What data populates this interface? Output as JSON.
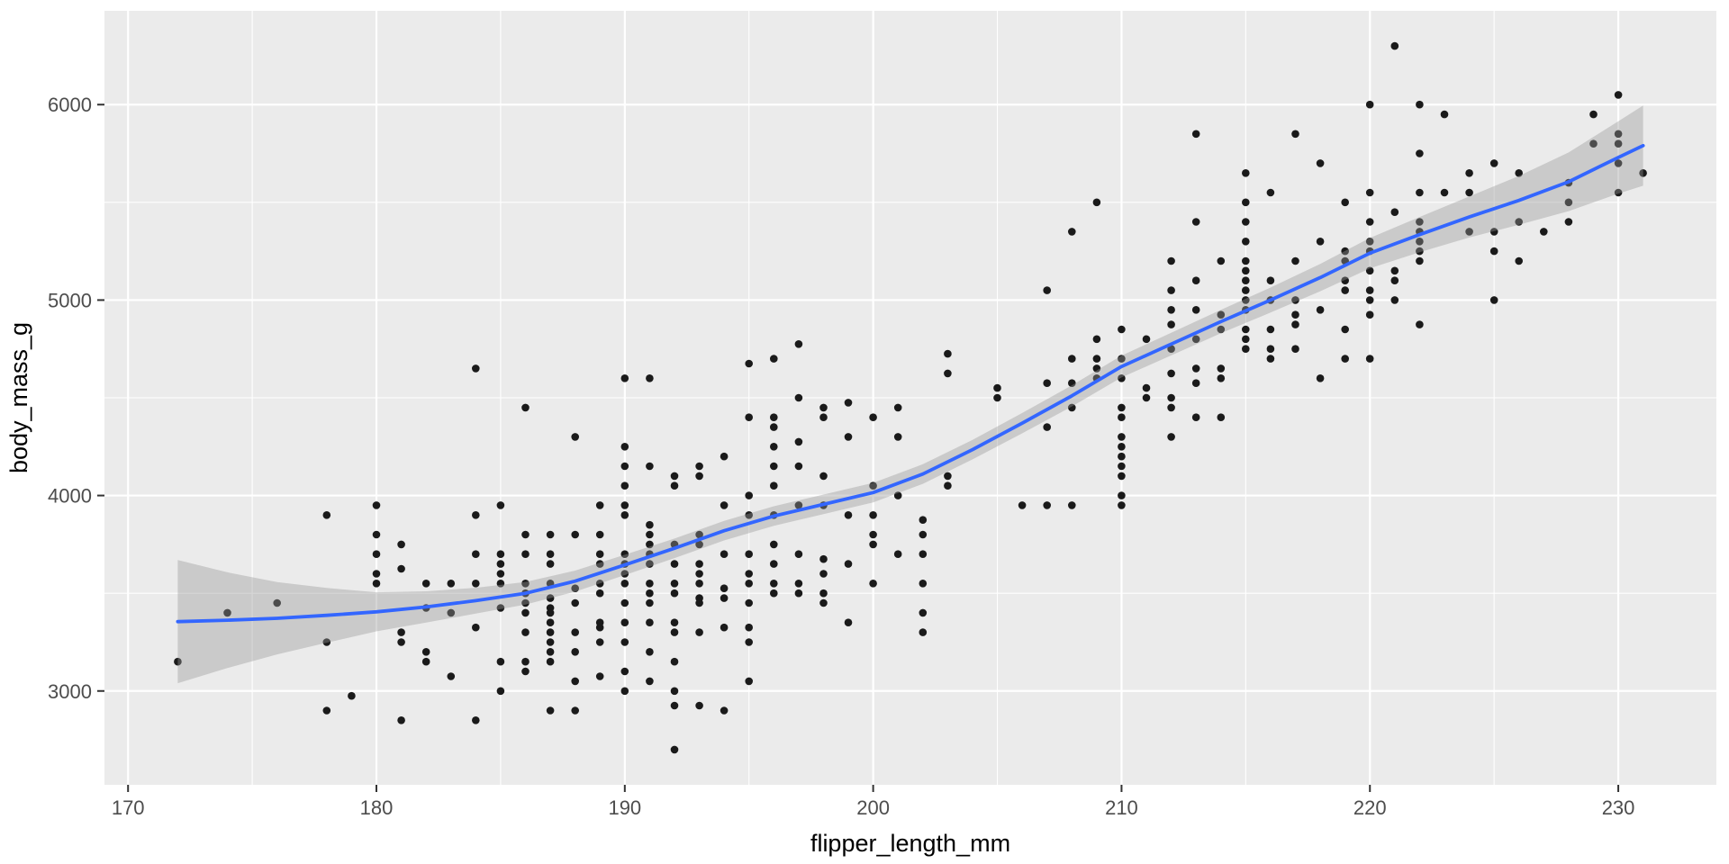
{
  "style": {
    "background": "#FFFFFF",
    "panel_fill": "#EBEBEB",
    "grid_color": "#FFFFFF",
    "point_color": "#1A1A1A",
    "smooth_color": "#3366FF",
    "ribbon_color": "rgba(153,153,153,0.40)",
    "tick_label_color": "#4D4D4D",
    "axis_title_color": "#000000",
    "tick_mark_color": "#333333"
  },
  "chart_data": {
    "type": "scatter",
    "title": "",
    "xlabel": "flipper_length_mm",
    "ylabel": "body_mass_g",
    "xlim": [
      169.05,
      233.95
    ],
    "ylim": [
      2520,
      6480
    ],
    "x_ticks": [
      170,
      180,
      190,
      200,
      210,
      220,
      230
    ],
    "y_ticks": [
      3000,
      4000,
      5000,
      6000
    ],
    "x_minor": [
      175,
      185,
      195,
      205,
      215,
      225
    ],
    "y_minor": [
      3500,
      4500,
      5500
    ],
    "grid": "on",
    "legend": "none",
    "points": [
      [
        172,
        3150
      ],
      [
        174,
        3400
      ],
      [
        176,
        3450
      ],
      [
        178,
        2900
      ],
      [
        178,
        3250
      ],
      [
        178,
        3900
      ],
      [
        179,
        2975
      ],
      [
        180,
        3550
      ],
      [
        180,
        3600
      ],
      [
        180,
        3700
      ],
      [
        180,
        3800
      ],
      [
        180,
        3950
      ],
      [
        181,
        2850
      ],
      [
        181,
        3250
      ],
      [
        181,
        3300
      ],
      [
        181,
        3625
      ],
      [
        181,
        3750
      ],
      [
        182,
        3150
      ],
      [
        182,
        3200
      ],
      [
        182,
        3425
      ],
      [
        182,
        3550
      ],
      [
        183,
        3075
      ],
      [
        183,
        3400
      ],
      [
        183,
        3550
      ],
      [
        184,
        2850
      ],
      [
        184,
        3325
      ],
      [
        184,
        3550
      ],
      [
        184,
        3700
      ],
      [
        184,
        3900
      ],
      [
        184,
        4650
      ],
      [
        185,
        3000
      ],
      [
        185,
        3150
      ],
      [
        185,
        3425
      ],
      [
        185,
        3550
      ],
      [
        185,
        3600
      ],
      [
        185,
        3650
      ],
      [
        185,
        3700
      ],
      [
        185,
        3950
      ],
      [
        186,
        3100
      ],
      [
        186,
        3150
      ],
      [
        186,
        3300
      ],
      [
        186,
        3400
      ],
      [
        186,
        3450
      ],
      [
        186,
        3500
      ],
      [
        186,
        3550
      ],
      [
        186,
        3700
      ],
      [
        186,
        3800
      ],
      [
        186,
        4450
      ],
      [
        187,
        2900
      ],
      [
        187,
        3150
      ],
      [
        187,
        3200
      ],
      [
        187,
        3250
      ],
      [
        187,
        3300
      ],
      [
        187,
        3350
      ],
      [
        187,
        3400
      ],
      [
        187,
        3425
      ],
      [
        187,
        3475
      ],
      [
        187,
        3550
      ],
      [
        187,
        3650
      ],
      [
        187,
        3700
      ],
      [
        187,
        3800
      ],
      [
        188,
        2900
      ],
      [
        188,
        3050
      ],
      [
        188,
        3200
      ],
      [
        188,
        3300
      ],
      [
        188,
        3450
      ],
      [
        188,
        3525
      ],
      [
        188,
        3800
      ],
      [
        188,
        4300
      ],
      [
        189,
        3075
      ],
      [
        189,
        3250
      ],
      [
        189,
        3325
      ],
      [
        189,
        3350
      ],
      [
        189,
        3500
      ],
      [
        189,
        3550
      ],
      [
        189,
        3650
      ],
      [
        189,
        3700
      ],
      [
        189,
        3800
      ],
      [
        189,
        3950
      ],
      [
        190,
        3000
      ],
      [
        190,
        3100
      ],
      [
        190,
        3250
      ],
      [
        190,
        3350
      ],
      [
        190,
        3450
      ],
      [
        190,
        3550
      ],
      [
        190,
        3600
      ],
      [
        190,
        3650
      ],
      [
        190,
        3700
      ],
      [
        190,
        3900
      ],
      [
        190,
        3950
      ],
      [
        190,
        4050
      ],
      [
        190,
        4150
      ],
      [
        190,
        4250
      ],
      [
        190,
        4600
      ],
      [
        191,
        3050
      ],
      [
        191,
        3200
      ],
      [
        191,
        3350
      ],
      [
        191,
        3450
      ],
      [
        191,
        3500
      ],
      [
        191,
        3550
      ],
      [
        191,
        3650
      ],
      [
        191,
        3700
      ],
      [
        191,
        3750
      ],
      [
        191,
        3800
      ],
      [
        191,
        3850
      ],
      [
        191,
        4150
      ],
      [
        191,
        4600
      ],
      [
        192,
        2700
      ],
      [
        192,
        2925
      ],
      [
        192,
        3000
      ],
      [
        192,
        3150
      ],
      [
        192,
        3300
      ],
      [
        192,
        3350
      ],
      [
        192,
        3500
      ],
      [
        192,
        3550
      ],
      [
        192,
        3650
      ],
      [
        192,
        3750
      ],
      [
        192,
        4050
      ],
      [
        192,
        4100
      ],
      [
        193,
        2925
      ],
      [
        193,
        3300
      ],
      [
        193,
        3450
      ],
      [
        193,
        3475
      ],
      [
        193,
        3550
      ],
      [
        193,
        3600
      ],
      [
        193,
        3650
      ],
      [
        193,
        3750
      ],
      [
        193,
        3800
      ],
      [
        193,
        4100
      ],
      [
        193,
        4150
      ],
      [
        194,
        2900
      ],
      [
        194,
        3325
      ],
      [
        194,
        3475
      ],
      [
        194,
        3525
      ],
      [
        194,
        3700
      ],
      [
        194,
        3950
      ],
      [
        194,
        4200
      ],
      [
        195,
        3050
      ],
      [
        195,
        3250
      ],
      [
        195,
        3325
      ],
      [
        195,
        3450
      ],
      [
        195,
        3550
      ],
      [
        195,
        3600
      ],
      [
        195,
        3700
      ],
      [
        195,
        3900
      ],
      [
        195,
        4000
      ],
      [
        195,
        4400
      ],
      [
        195,
        4675
      ],
      [
        196,
        3500
      ],
      [
        196,
        3550
      ],
      [
        196,
        3650
      ],
      [
        196,
        3750
      ],
      [
        196,
        3900
      ],
      [
        196,
        4050
      ],
      [
        196,
        4150
      ],
      [
        196,
        4250
      ],
      [
        196,
        4350
      ],
      [
        196,
        4400
      ],
      [
        196,
        4700
      ],
      [
        197,
        3500
      ],
      [
        197,
        3550
      ],
      [
        197,
        3700
      ],
      [
        197,
        3950
      ],
      [
        197,
        4150
      ],
      [
        197,
        4275
      ],
      [
        197,
        4500
      ],
      [
        197,
        4775
      ],
      [
        198,
        3450
      ],
      [
        198,
        3500
      ],
      [
        198,
        3600
      ],
      [
        198,
        3675
      ],
      [
        198,
        3950
      ],
      [
        198,
        4100
      ],
      [
        198,
        4400
      ],
      [
        198,
        4450
      ],
      [
        199,
        3350
      ],
      [
        199,
        3650
      ],
      [
        199,
        3900
      ],
      [
        199,
        4300
      ],
      [
        199,
        4475
      ],
      [
        200,
        3550
      ],
      [
        200,
        3750
      ],
      [
        200,
        3800
      ],
      [
        200,
        3900
      ],
      [
        200,
        4050
      ],
      [
        200,
        4400
      ],
      [
        201,
        3700
      ],
      [
        201,
        4000
      ],
      [
        201,
        4300
      ],
      [
        201,
        4450
      ],
      [
        202,
        3300
      ],
      [
        202,
        3400
      ],
      [
        202,
        3550
      ],
      [
        202,
        3700
      ],
      [
        202,
        3800
      ],
      [
        202,
        3875
      ],
      [
        203,
        4050
      ],
      [
        203,
        4100
      ],
      [
        203,
        4625
      ],
      [
        203,
        4725
      ],
      [
        205,
        4500
      ],
      [
        205,
        4550
      ],
      [
        206,
        3950
      ],
      [
        207,
        3950
      ],
      [
        207,
        4350
      ],
      [
        207,
        4575
      ],
      [
        207,
        5050
      ],
      [
        208,
        3950
      ],
      [
        208,
        4450
      ],
      [
        208,
        4575
      ],
      [
        208,
        4700
      ],
      [
        208,
        5350
      ],
      [
        209,
        4600
      ],
      [
        209,
        4650
      ],
      [
        209,
        4700
      ],
      [
        209,
        4800
      ],
      [
        209,
        5500
      ],
      [
        210,
        3950
      ],
      [
        210,
        4000
      ],
      [
        210,
        4100
      ],
      [
        210,
        4150
      ],
      [
        210,
        4200
      ],
      [
        210,
        4250
      ],
      [
        210,
        4300
      ],
      [
        210,
        4400
      ],
      [
        210,
        4450
      ],
      [
        210,
        4600
      ],
      [
        210,
        4700
      ],
      [
        210,
        4850
      ],
      [
        211,
        4500
      ],
      [
        211,
        4550
      ],
      [
        211,
        4800
      ],
      [
        212,
        4300
      ],
      [
        212,
        4450
      ],
      [
        212,
        4500
      ],
      [
        212,
        4625
      ],
      [
        212,
        4750
      ],
      [
        212,
        4875
      ],
      [
        212,
        4950
      ],
      [
        212,
        5050
      ],
      [
        212,
        5200
      ],
      [
        213,
        4400
      ],
      [
        213,
        4575
      ],
      [
        213,
        4650
      ],
      [
        213,
        4800
      ],
      [
        213,
        4950
      ],
      [
        213,
        5100
      ],
      [
        213,
        5400
      ],
      [
        213,
        5850
      ],
      [
        214,
        4400
      ],
      [
        214,
        4600
      ],
      [
        214,
        4650
      ],
      [
        214,
        4850
      ],
      [
        214,
        4925
      ],
      [
        214,
        5200
      ],
      [
        215,
        4750
      ],
      [
        215,
        4800
      ],
      [
        215,
        4850
      ],
      [
        215,
        4950
      ],
      [
        215,
        5000
      ],
      [
        215,
        5050
      ],
      [
        215,
        5100
      ],
      [
        215,
        5150
      ],
      [
        215,
        5200
      ],
      [
        215,
        5300
      ],
      [
        215,
        5400
      ],
      [
        215,
        5500
      ],
      [
        215,
        5650
      ],
      [
        216,
        4700
      ],
      [
        216,
        4750
      ],
      [
        216,
        4850
      ],
      [
        216,
        5000
      ],
      [
        216,
        5100
      ],
      [
        216,
        5550
      ],
      [
        217,
        4750
      ],
      [
        217,
        4875
      ],
      [
        217,
        4925
      ],
      [
        217,
        5000
      ],
      [
        217,
        5200
      ],
      [
        217,
        5850
      ],
      [
        218,
        4600
      ],
      [
        218,
        4950
      ],
      [
        218,
        5300
      ],
      [
        218,
        5700
      ],
      [
        219,
        4700
      ],
      [
        219,
        4850
      ],
      [
        219,
        5050
      ],
      [
        219,
        5100
      ],
      [
        219,
        5200
      ],
      [
        219,
        5250
      ],
      [
        219,
        5500
      ],
      [
        220,
        4700
      ],
      [
        220,
        4925
      ],
      [
        220,
        5000
      ],
      [
        220,
        5050
      ],
      [
        220,
        5150
      ],
      [
        220,
        5250
      ],
      [
        220,
        5300
      ],
      [
        220,
        5400
      ],
      [
        220,
        5550
      ],
      [
        220,
        6000
      ],
      [
        221,
        5000
      ],
      [
        221,
        5100
      ],
      [
        221,
        5150
      ],
      [
        221,
        5450
      ],
      [
        221,
        6300
      ],
      [
        222,
        4875
      ],
      [
        222,
        5200
      ],
      [
        222,
        5250
      ],
      [
        222,
        5300
      ],
      [
        222,
        5350
      ],
      [
        222,
        5400
      ],
      [
        222,
        5550
      ],
      [
        222,
        5750
      ],
      [
        222,
        6000
      ],
      [
        223,
        5550
      ],
      [
        223,
        5950
      ],
      [
        224,
        5350
      ],
      [
        224,
        5550
      ],
      [
        224,
        5650
      ],
      [
        225,
        5000
      ],
      [
        225,
        5250
      ],
      [
        225,
        5350
      ],
      [
        225,
        5700
      ],
      [
        226,
        5200
      ],
      [
        226,
        5400
      ],
      [
        226,
        5650
      ],
      [
        227,
        5350
      ],
      [
        228,
        5400
      ],
      [
        228,
        5500
      ],
      [
        228,
        5600
      ],
      [
        229,
        5800
      ],
      [
        229,
        5950
      ],
      [
        230,
        5550
      ],
      [
        230,
        5700
      ],
      [
        230,
        5800
      ],
      [
        230,
        5850
      ],
      [
        230,
        6050
      ],
      [
        231,
        5650
      ]
    ],
    "smooth": {
      "x": [
        172,
        174,
        176,
        178,
        180,
        182,
        184,
        186,
        188,
        190,
        192,
        194,
        196,
        198,
        200,
        202,
        204,
        206,
        208,
        210,
        212,
        214,
        216,
        218,
        220,
        222,
        224,
        226,
        228,
        230,
        231
      ],
      "fit": [
        3355,
        3362,
        3372,
        3387,
        3405,
        3430,
        3462,
        3500,
        3562,
        3645,
        3730,
        3820,
        3895,
        3955,
        4015,
        4110,
        4235,
        4370,
        4510,
        4660,
        4775,
        4890,
        5000,
        5115,
        5240,
        5335,
        5425,
        5510,
        5605,
        5730,
        5790
      ],
      "lower": [
        3040,
        3117,
        3187,
        3247,
        3305,
        3350,
        3396,
        3442,
        3508,
        3593,
        3680,
        3770,
        3845,
        3905,
        3965,
        4060,
        4185,
        4318,
        4456,
        4604,
        4717,
        4830,
        4936,
        5045,
        5162,
        5245,
        5320,
        5385,
        5455,
        5545,
        5585
      ],
      "upper": [
        3670,
        3607,
        3557,
        3527,
        3505,
        3510,
        3528,
        3558,
        3616,
        3697,
        3780,
        3870,
        3945,
        4005,
        4065,
        4160,
        4285,
        4422,
        4564,
        4716,
        4833,
        4950,
        5064,
        5185,
        5318,
        5425,
        5530,
        5635,
        5755,
        5915,
        5995
      ]
    }
  },
  "axes": {
    "x_title": "flipper_length_mm",
    "y_title": "body_mass_g",
    "x_tick_labels": [
      "170",
      "180",
      "190",
      "200",
      "210",
      "220",
      "230"
    ],
    "y_tick_labels": [
      "3000",
      "4000",
      "5000",
      "6000"
    ]
  }
}
